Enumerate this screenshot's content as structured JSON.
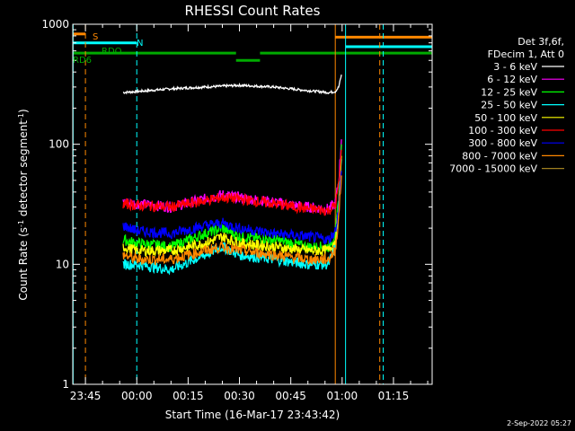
{
  "chart_data": {
    "type": "line",
    "title": "RHESSI Count Rates",
    "xlabel": "Start Time (16-Mar-17 23:43:42)",
    "ylabel_main": "Count Rate (s",
    "ylabel_sup": "-1",
    "ylabel_mid": " detector segment",
    "ylabel_end": ")",
    "yscale": "log",
    "xlim_min": [
      -18.7,
      86.3
    ],
    "ylim": [
      1,
      1000
    ],
    "xticks": [
      {
        "m": -15,
        "label": "23:45"
      },
      {
        "m": 0,
        "label": "00:00"
      },
      {
        "m": 15,
        "label": "00:15"
      },
      {
        "m": 30,
        "label": "00:30"
      },
      {
        "m": 45,
        "label": "00:45"
      },
      {
        "m": 60,
        "label": "01:00"
      },
      {
        "m": 75,
        "label": "01:15"
      }
    ],
    "yticks": [
      {
        "v": 1,
        "label": "1"
      },
      {
        "v": 10,
        "label": "10"
      },
      {
        "v": 100,
        "label": "100"
      },
      {
        "v": 1000,
        "label": "1000"
      }
    ],
    "legend_header": [
      "Det 3f,6f,",
      "FDecim 1, Att 0"
    ],
    "legend_placement": "right",
    "series": [
      {
        "name": "3 - 6 keV",
        "color": "#ffffff",
        "x": [
          -4,
          0,
          10,
          20,
          30,
          40,
          50,
          56,
          58,
          59,
          59.8
        ],
        "y": [
          270,
          275,
          290,
          300,
          310,
          300,
          280,
          270,
          275,
          300,
          380
        ]
      },
      {
        "name": "6 - 12 keV",
        "color": "#ff00ff",
        "x": [
          -4,
          0,
          10,
          20,
          25,
          30,
          40,
          50,
          56,
          58,
          59,
          59.8
        ],
        "y": [
          33,
          32,
          30,
          35,
          38,
          36,
          33,
          30,
          29,
          32,
          50,
          110
        ]
      },
      {
        "name": "12 - 25 keV",
        "color": "#00ff00",
        "x": [
          -4,
          0,
          10,
          20,
          25,
          30,
          40,
          50,
          56,
          58,
          59,
          59.8
        ],
        "y": [
          16,
          15,
          14,
          18,
          20,
          17,
          16,
          14,
          14,
          18,
          35,
          100
        ]
      },
      {
        "name": "25 - 50 keV",
        "color": "#00ffff",
        "x": [
          -4,
          0,
          10,
          20,
          25,
          30,
          40,
          50,
          56,
          58,
          59,
          59.8
        ],
        "y": [
          10,
          10,
          9,
          12,
          14,
          12,
          11,
          10,
          10,
          14,
          30,
          75
        ]
      },
      {
        "name": "50 - 100 keV",
        "color": "#ffff00",
        "x": [
          -4,
          0,
          10,
          20,
          25,
          30,
          40,
          50,
          56,
          58,
          59,
          59.8
        ],
        "y": [
          14,
          13,
          13,
          15,
          17,
          15,
          14,
          13,
          13,
          16,
          30,
          80
        ]
      },
      {
        "name": "100 - 300 keV",
        "color": "#ff0000",
        "x": [
          -4,
          0,
          10,
          20,
          25,
          30,
          40,
          50,
          56,
          58,
          59,
          59.8
        ],
        "y": [
          32,
          31,
          30,
          34,
          36,
          35,
          32,
          29,
          28,
          31,
          45,
          90
        ]
      },
      {
        "name": "300 - 800 keV",
        "color": "#0000ff",
        "x": [
          -4,
          0,
          10,
          20,
          25,
          30,
          40,
          50,
          56,
          58,
          59,
          59.8
        ],
        "y": [
          21,
          19,
          18,
          21,
          22,
          20,
          18,
          17,
          16,
          19,
          30,
          60
        ]
      },
      {
        "name": "800 - 7000 keV",
        "color": "#ff8800",
        "x": [
          -4,
          0,
          10,
          20,
          25,
          30,
          40,
          50,
          56,
          58,
          59,
          59.8
        ],
        "y": [
          12,
          11,
          11,
          13,
          14,
          13,
          12,
          11,
          11,
          13,
          25,
          55
        ]
      },
      {
        "name": "7000 - 15000 keV",
        "color": "#a08020",
        "x": [],
        "y": []
      }
    ],
    "annotations": [
      {
        "label": "S",
        "color": "#ff8800"
      },
      {
        "label": "N",
        "color": "#00ffff"
      },
      {
        "label": "RDO",
        "color": "#00aa00"
      },
      {
        "label": "RD6",
        "color": "#00aa00"
      }
    ],
    "flag_bars": [
      {
        "color": "#ff8800",
        "level": 830,
        "x0": -18.7,
        "x1": -15
      },
      {
        "color": "#ff8800",
        "level": 780,
        "x0": 58,
        "x1": 86.3
      },
      {
        "color": "#00ffff",
        "level": 700,
        "x0": -18.7,
        "x1": 0
      },
      {
        "color": "#00ffff",
        "level": 650,
        "x0": 61,
        "x1": 86.3
      },
      {
        "color": "#00aa00",
        "level": 575,
        "x0": -18.7,
        "x1": 29
      },
      {
        "color": "#00aa00",
        "level": 575,
        "x0": 36,
        "x1": 86.3
      },
      {
        "color": "#00aa00",
        "level": 500,
        "x0": 29,
        "x1": 36
      }
    ],
    "vlines": [
      {
        "color": "#00ffff",
        "style": "solid",
        "x": -18.6
      },
      {
        "color": "#ff8800",
        "style": "dashed",
        "x": -15
      },
      {
        "color": "#00ffff",
        "style": "dashed",
        "x": 0
      },
      {
        "color": "#ff8800",
        "style": "solid",
        "x": 58
      },
      {
        "color": "#00ffff",
        "style": "solid",
        "x": 61
      },
      {
        "color": "#ff8800",
        "style": "dashed",
        "x": 71
      },
      {
        "color": "#00ffff",
        "style": "dashed",
        "x": 72
      }
    ]
  },
  "footer_date": "2-Sep-2022 05:27"
}
